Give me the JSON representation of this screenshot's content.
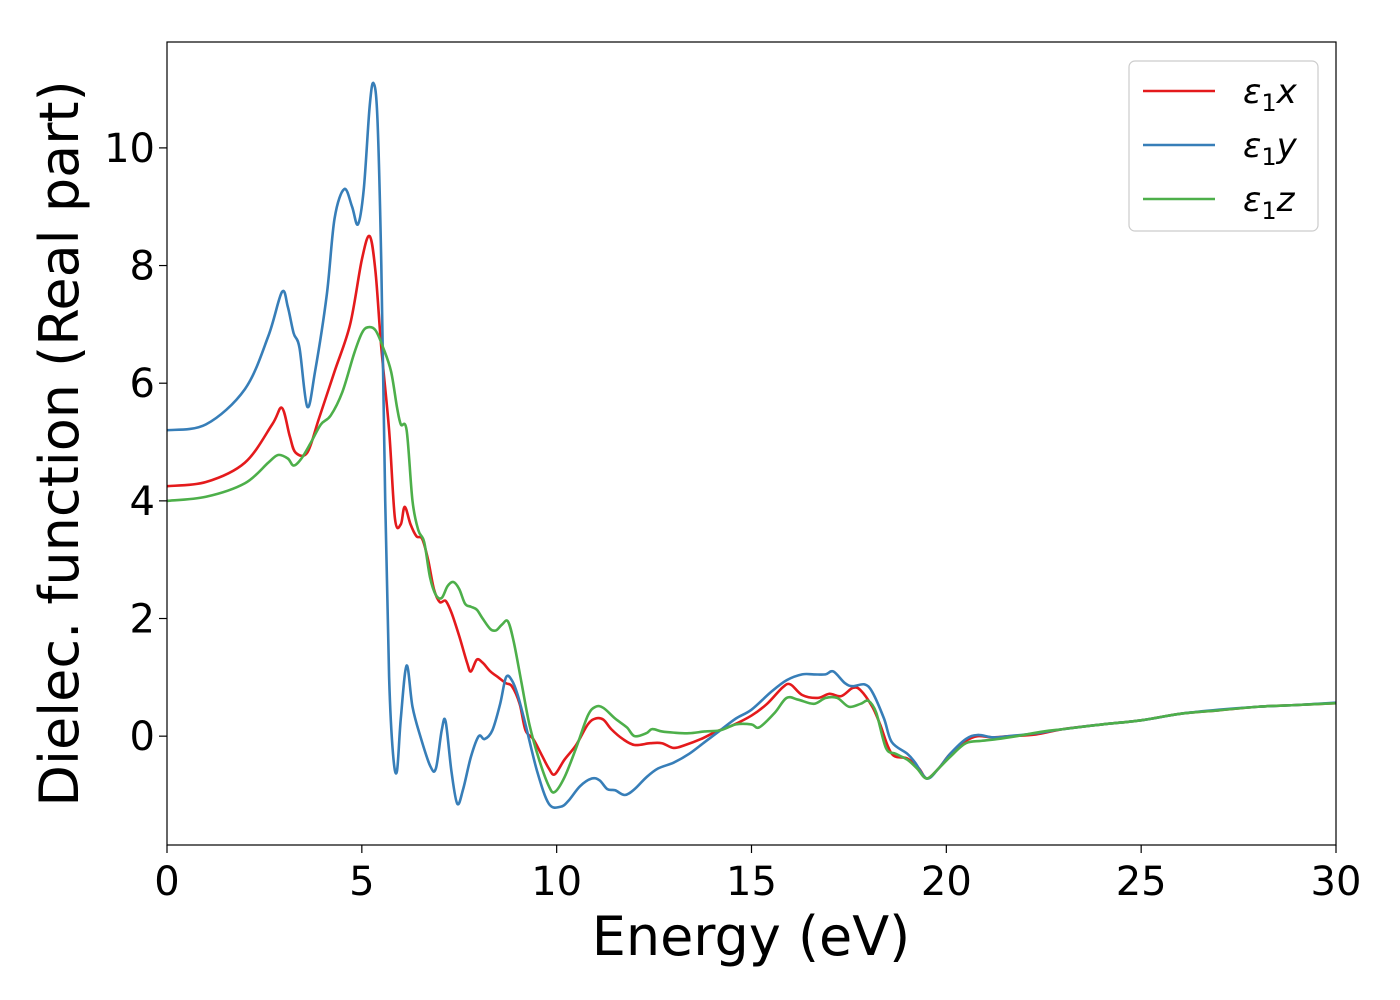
{
  "chart_data": {
    "type": "line",
    "xlabel": "Energy (eV)",
    "ylabel": "Dielec. function (Real part)",
    "xlim": [
      0,
      30
    ],
    "ylim": [
      -1.85,
      11.8
    ],
    "xticks": [
      0,
      5,
      10,
      15,
      20,
      25,
      30
    ],
    "yticks": [
      0,
      2,
      4,
      6,
      8,
      10
    ],
    "grid": false,
    "legend_position": "top-right",
    "series": [
      {
        "name": "ε1x",
        "legend_base": "ε",
        "legend_sub": "1",
        "legend_suffix": "x",
        "color": "#e41a1c",
        "points": [
          [
            0,
            4.25
          ],
          [
            1,
            4.32
          ],
          [
            2,
            4.65
          ],
          [
            2.7,
            5.3
          ],
          [
            2.95,
            5.58
          ],
          [
            3.15,
            5.1
          ],
          [
            3.3,
            4.82
          ],
          [
            3.6,
            4.82
          ],
          [
            3.9,
            5.4
          ],
          [
            4.3,
            6.2
          ],
          [
            4.7,
            7.0
          ],
          [
            5.0,
            8.1
          ],
          [
            5.2,
            8.5
          ],
          [
            5.35,
            7.9
          ],
          [
            5.5,
            6.6
          ],
          [
            5.7,
            5.2
          ],
          [
            5.85,
            3.7
          ],
          [
            6.0,
            3.6
          ],
          [
            6.1,
            3.9
          ],
          [
            6.25,
            3.6
          ],
          [
            6.4,
            3.4
          ],
          [
            6.55,
            3.35
          ],
          [
            6.7,
            3.0
          ],
          [
            6.85,
            2.5
          ],
          [
            7.0,
            2.28
          ],
          [
            7.15,
            2.3
          ],
          [
            7.3,
            2.1
          ],
          [
            7.5,
            1.7
          ],
          [
            7.7,
            1.25
          ],
          [
            7.8,
            1.1
          ],
          [
            7.95,
            1.3
          ],
          [
            8.1,
            1.25
          ],
          [
            8.3,
            1.1
          ],
          [
            8.5,
            1.0
          ],
          [
            8.7,
            0.9
          ],
          [
            8.85,
            0.85
          ],
          [
            9.05,
            0.55
          ],
          [
            9.2,
            0.1
          ],
          [
            9.4,
            -0.05
          ],
          [
            9.6,
            -0.3
          ],
          [
            9.8,
            -0.55
          ],
          [
            9.95,
            -0.65
          ],
          [
            10.2,
            -0.4
          ],
          [
            10.5,
            -0.15
          ],
          [
            10.8,
            0.2
          ],
          [
            11.0,
            0.3
          ],
          [
            11.2,
            0.28
          ],
          [
            11.4,
            0.12
          ],
          [
            11.7,
            -0.05
          ],
          [
            12.0,
            -0.15
          ],
          [
            12.4,
            -0.12
          ],
          [
            12.7,
            -0.12
          ],
          [
            13.0,
            -0.2
          ],
          [
            13.3,
            -0.15
          ],
          [
            13.7,
            -0.05
          ],
          [
            14.1,
            0.08
          ],
          [
            14.5,
            0.18
          ],
          [
            15.0,
            0.35
          ],
          [
            15.4,
            0.55
          ],
          [
            15.8,
            0.83
          ],
          [
            16.0,
            0.88
          ],
          [
            16.3,
            0.7
          ],
          [
            16.7,
            0.65
          ],
          [
            17.0,
            0.72
          ],
          [
            17.3,
            0.68
          ],
          [
            17.6,
            0.82
          ],
          [
            17.8,
            0.78
          ],
          [
            18.1,
            0.5
          ],
          [
            18.3,
            0.2
          ],
          [
            18.6,
            -0.3
          ],
          [
            19.0,
            -0.38
          ],
          [
            19.3,
            -0.55
          ],
          [
            19.5,
            -0.72
          ],
          [
            19.8,
            -0.55
          ],
          [
            20.1,
            -0.3
          ],
          [
            20.5,
            -0.08
          ],
          [
            20.8,
            0.0
          ],
          [
            21.2,
            -0.02
          ],
          [
            21.6,
            0.0
          ],
          [
            22.3,
            0.03
          ],
          [
            23.0,
            0.12
          ],
          [
            24.0,
            0.2
          ],
          [
            25.0,
            0.27
          ],
          [
            26.0,
            0.38
          ],
          [
            27.0,
            0.44
          ],
          [
            28.0,
            0.5
          ],
          [
            29.0,
            0.53
          ],
          [
            30.0,
            0.56
          ]
        ]
      },
      {
        "name": "ε1y",
        "legend_base": "ε",
        "legend_sub": "1",
        "legend_suffix": "y",
        "color": "#377eb8",
        "points": [
          [
            0,
            5.2
          ],
          [
            1,
            5.3
          ],
          [
            2,
            5.9
          ],
          [
            2.6,
            6.8
          ],
          [
            2.95,
            7.55
          ],
          [
            3.1,
            7.3
          ],
          [
            3.25,
            6.85
          ],
          [
            3.4,
            6.6
          ],
          [
            3.6,
            5.6
          ],
          [
            3.8,
            6.2
          ],
          [
            4.1,
            7.5
          ],
          [
            4.3,
            8.8
          ],
          [
            4.55,
            9.3
          ],
          [
            4.75,
            9.0
          ],
          [
            4.9,
            8.7
          ],
          [
            5.05,
            9.3
          ],
          [
            5.2,
            10.7
          ],
          [
            5.3,
            11.1
          ],
          [
            5.4,
            10.5
          ],
          [
            5.5,
            8.0
          ],
          [
            5.6,
            4.0
          ],
          [
            5.7,
            1.0
          ],
          [
            5.8,
            -0.3
          ],
          [
            5.9,
            -0.6
          ],
          [
            6.0,
            0.3
          ],
          [
            6.15,
            1.2
          ],
          [
            6.3,
            0.5
          ],
          [
            6.5,
            0.0
          ],
          [
            6.75,
            -0.5
          ],
          [
            6.9,
            -0.55
          ],
          [
            7.05,
            0.1
          ],
          [
            7.15,
            0.25
          ],
          [
            7.3,
            -0.6
          ],
          [
            7.45,
            -1.15
          ],
          [
            7.6,
            -0.9
          ],
          [
            7.8,
            -0.35
          ],
          [
            8.0,
            0.0
          ],
          [
            8.15,
            -0.05
          ],
          [
            8.35,
            0.1
          ],
          [
            8.55,
            0.55
          ],
          [
            8.7,
            1.0
          ],
          [
            8.85,
            0.95
          ],
          [
            9.0,
            0.7
          ],
          [
            9.2,
            0.2
          ],
          [
            9.5,
            -0.6
          ],
          [
            9.8,
            -1.15
          ],
          [
            10.1,
            -1.2
          ],
          [
            10.3,
            -1.1
          ],
          [
            10.6,
            -0.85
          ],
          [
            10.9,
            -0.72
          ],
          [
            11.1,
            -0.75
          ],
          [
            11.3,
            -0.9
          ],
          [
            11.5,
            -0.92
          ],
          [
            11.75,
            -1.0
          ],
          [
            12.0,
            -0.9
          ],
          [
            12.3,
            -0.7
          ],
          [
            12.6,
            -0.55
          ],
          [
            13.0,
            -0.45
          ],
          [
            13.4,
            -0.3
          ],
          [
            13.8,
            -0.1
          ],
          [
            14.2,
            0.1
          ],
          [
            14.6,
            0.3
          ],
          [
            15.0,
            0.45
          ],
          [
            15.5,
            0.75
          ],
          [
            15.9,
            0.95
          ],
          [
            16.3,
            1.05
          ],
          [
            16.6,
            1.05
          ],
          [
            16.9,
            1.05
          ],
          [
            17.1,
            1.1
          ],
          [
            17.4,
            0.9
          ],
          [
            17.6,
            0.85
          ],
          [
            17.9,
            0.88
          ],
          [
            18.1,
            0.75
          ],
          [
            18.4,
            0.3
          ],
          [
            18.6,
            -0.1
          ],
          [
            19.0,
            -0.3
          ],
          [
            19.2,
            -0.45
          ],
          [
            19.5,
            -0.72
          ],
          [
            19.8,
            -0.55
          ],
          [
            20.1,
            -0.3
          ],
          [
            20.5,
            -0.05
          ],
          [
            20.8,
            0.02
          ],
          [
            21.2,
            -0.02
          ],
          [
            21.6,
            0.0
          ],
          [
            22.3,
            0.05
          ],
          [
            23.0,
            0.12
          ],
          [
            24.0,
            0.2
          ],
          [
            25.0,
            0.27
          ],
          [
            26.0,
            0.38
          ],
          [
            27.0,
            0.45
          ],
          [
            28.0,
            0.5
          ],
          [
            29.0,
            0.53
          ],
          [
            30.0,
            0.57
          ]
        ]
      },
      {
        "name": "ε1z",
        "legend_base": "ε",
        "legend_sub": "1",
        "legend_suffix": "z",
        "color": "#4daf4a",
        "points": [
          [
            0,
            4.0
          ],
          [
            1,
            4.07
          ],
          [
            2,
            4.3
          ],
          [
            2.6,
            4.65
          ],
          [
            2.85,
            4.78
          ],
          [
            3.1,
            4.72
          ],
          [
            3.25,
            4.6
          ],
          [
            3.45,
            4.72
          ],
          [
            3.7,
            5.0
          ],
          [
            3.95,
            5.3
          ],
          [
            4.2,
            5.45
          ],
          [
            4.5,
            5.85
          ],
          [
            4.8,
            6.5
          ],
          [
            5.0,
            6.85
          ],
          [
            5.15,
            6.95
          ],
          [
            5.35,
            6.9
          ],
          [
            5.55,
            6.6
          ],
          [
            5.75,
            6.2
          ],
          [
            5.9,
            5.6
          ],
          [
            6.0,
            5.3
          ],
          [
            6.15,
            5.2
          ],
          [
            6.3,
            4.0
          ],
          [
            6.45,
            3.5
          ],
          [
            6.6,
            3.3
          ],
          [
            6.75,
            2.7
          ],
          [
            6.9,
            2.4
          ],
          [
            7.05,
            2.35
          ],
          [
            7.2,
            2.55
          ],
          [
            7.35,
            2.62
          ],
          [
            7.5,
            2.5
          ],
          [
            7.65,
            2.25
          ],
          [
            7.8,
            2.2
          ],
          [
            7.95,
            2.15
          ],
          [
            8.1,
            2.0
          ],
          [
            8.3,
            1.82
          ],
          [
            8.45,
            1.8
          ],
          [
            8.6,
            1.9
          ],
          [
            8.75,
            1.95
          ],
          [
            8.9,
            1.6
          ],
          [
            9.1,
            0.9
          ],
          [
            9.3,
            0.2
          ],
          [
            9.55,
            -0.4
          ],
          [
            9.8,
            -0.85
          ],
          [
            9.95,
            -0.95
          ],
          [
            10.2,
            -0.7
          ],
          [
            10.5,
            -0.2
          ],
          [
            10.8,
            0.35
          ],
          [
            11.0,
            0.5
          ],
          [
            11.2,
            0.48
          ],
          [
            11.5,
            0.3
          ],
          [
            11.8,
            0.15
          ],
          [
            12.0,
            0.0
          ],
          [
            12.3,
            0.05
          ],
          [
            12.45,
            0.12
          ],
          [
            12.7,
            0.08
          ],
          [
            13.0,
            0.06
          ],
          [
            13.4,
            0.05
          ],
          [
            13.8,
            0.08
          ],
          [
            14.2,
            0.1
          ],
          [
            14.6,
            0.2
          ],
          [
            15.0,
            0.2
          ],
          [
            15.2,
            0.15
          ],
          [
            15.6,
            0.4
          ],
          [
            15.9,
            0.65
          ],
          [
            16.2,
            0.62
          ],
          [
            16.6,
            0.55
          ],
          [
            16.9,
            0.65
          ],
          [
            17.2,
            0.65
          ],
          [
            17.5,
            0.5
          ],
          [
            17.8,
            0.55
          ],
          [
            18.0,
            0.6
          ],
          [
            18.2,
            0.4
          ],
          [
            18.45,
            -0.2
          ],
          [
            18.7,
            -0.3
          ],
          [
            19.0,
            -0.4
          ],
          [
            19.25,
            -0.55
          ],
          [
            19.5,
            -0.72
          ],
          [
            19.8,
            -0.55
          ],
          [
            20.1,
            -0.35
          ],
          [
            20.5,
            -0.12
          ],
          [
            20.9,
            -0.08
          ],
          [
            21.3,
            -0.05
          ],
          [
            21.8,
            0.0
          ],
          [
            22.5,
            0.08
          ],
          [
            23.0,
            0.12
          ],
          [
            24.0,
            0.2
          ],
          [
            25.0,
            0.27
          ],
          [
            26.0,
            0.38
          ],
          [
            27.0,
            0.44
          ],
          [
            28.0,
            0.5
          ],
          [
            29.0,
            0.53
          ],
          [
            30.0,
            0.56
          ]
        ]
      }
    ]
  }
}
